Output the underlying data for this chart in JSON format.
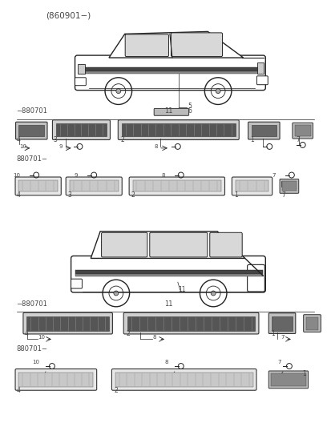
{
  "bg_color": "#ffffff",
  "fig_width": 4.14,
  "fig_height": 5.38,
  "dpi": 100,
  "label_860901": "(860901−)",
  "label_880701_1": "−880701",
  "label_880701_2": "880701−",
  "label_880701_3": "−880701",
  "label_880701_4": "880701−",
  "text_color": "#444444",
  "line_color": "#222222"
}
